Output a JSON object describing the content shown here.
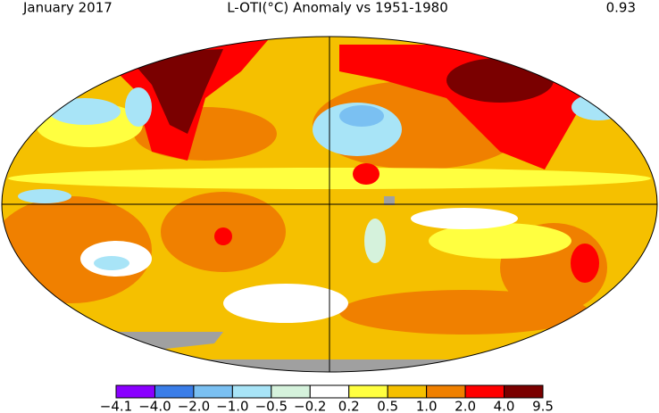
{
  "header": {
    "date": "January 2017",
    "title": "L-OTI(°C) Anomaly vs 1951-1980",
    "global_mean": "0.93"
  },
  "colorbar": {
    "colors": [
      "#8a00ff",
      "#3a7de8",
      "#7ac0f2",
      "#a8e4f7",
      "#d5f2dc",
      "#ffffff",
      "#ffff40",
      "#f5c000",
      "#f08000",
      "#ff0000",
      "#7a0000"
    ],
    "labels": [
      "−4.1",
      "−4.0",
      "−2.0",
      "−1.0",
      "−0.5",
      "−0.2",
      "0.2",
      "0.5",
      "1.0",
      "2.0",
      "4.0",
      "9.5"
    ]
  }
}
